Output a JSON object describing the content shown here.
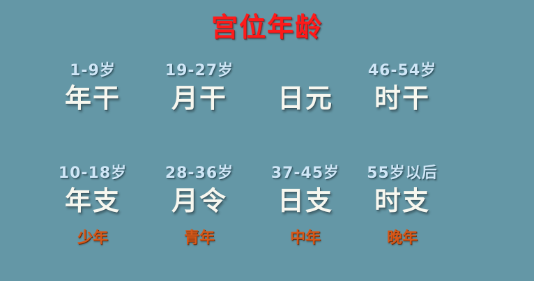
{
  "title": "宫位年龄",
  "stems": [
    {
      "age": "1-9岁",
      "label": "年干"
    },
    {
      "age": "19-27岁",
      "label": "月干"
    },
    {
      "age": "",
      "label": "日元"
    },
    {
      "age": "46-54岁",
      "label": "时干"
    }
  ],
  "branches": [
    {
      "age": "10-18岁",
      "label": "年支"
    },
    {
      "age": "28-36岁",
      "label": "月令"
    },
    {
      "age": "37-45岁",
      "label": "日支"
    },
    {
      "age": "55岁以后",
      "label": "时支"
    }
  ],
  "stages": [
    "少年",
    "青年",
    "中年",
    "晚年"
  ],
  "colors": {
    "background": "#6497a6",
    "title": "#ff1a1a",
    "age": "#cfe6f6",
    "pillar": "#f7f7ef",
    "stage": "#d5581a"
  }
}
